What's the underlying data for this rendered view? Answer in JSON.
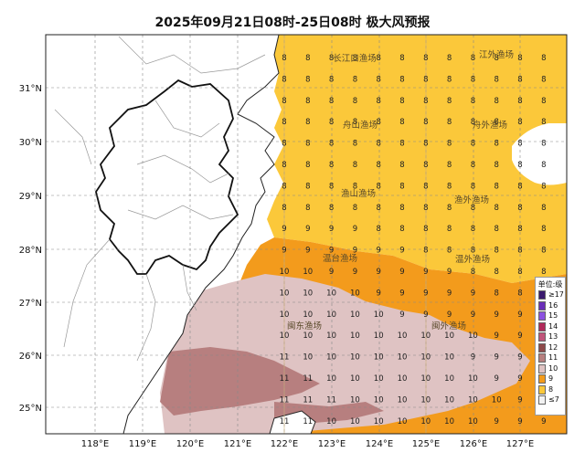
{
  "title": "2025年09月21日08时-25日08时 极大风预报",
  "axes": {
    "lon_labels": [
      "118°E",
      "119°E",
      "120°E",
      "121°E",
      "122°E",
      "123°E",
      "124°E",
      "125°E",
      "126°E",
      "127°E"
    ],
    "lat_labels": [
      "31°N",
      "30°N",
      "29°N",
      "28°N",
      "27°N",
      "26°N",
      "25°N"
    ]
  },
  "fishing_grounds": [
    "长江口渔场",
    "江外渔场",
    "舟山渔场",
    "舟外渔场",
    "渔山渔场",
    "渔外渔场",
    "温台渔场",
    "温外渔场",
    "闽东渔场",
    "闽外渔场"
  ],
  "wind_grid": {
    "rows": [
      [
        8,
        8,
        8,
        8,
        8,
        8,
        8,
        8,
        8,
        8,
        8,
        8
      ],
      [
        8,
        8,
        8,
        8,
        8,
        8,
        8,
        8,
        8,
        8,
        8,
        8
      ],
      [
        8,
        8,
        8,
        8,
        8,
        8,
        8,
        8,
        8,
        8,
        8,
        8
      ],
      [
        8,
        8,
        8,
        8,
        8,
        8,
        8,
        8,
        8,
        8,
        8,
        8
      ],
      [
        8,
        8,
        8,
        8,
        8,
        8,
        8,
        8,
        8,
        8,
        8,
        8
      ],
      [
        8,
        8,
        8,
        8,
        8,
        8,
        8,
        8,
        8,
        8,
        8,
        8
      ],
      [
        8,
        8,
        8,
        8,
        8,
        8,
        8,
        8,
        8,
        8,
        8,
        8
      ],
      [
        8,
        8,
        8,
        8,
        8,
        8,
        8,
        8,
        8,
        8,
        8,
        8
      ],
      [
        9,
        9,
        9,
        9,
        8,
        8,
        8,
        8,
        8,
        8,
        8,
        8
      ],
      [
        9,
        9,
        9,
        9,
        9,
        9,
        8,
        8,
        8,
        8,
        8,
        8
      ],
      [
        10,
        10,
        9,
        9,
        9,
        9,
        9,
        9,
        8,
        8,
        8,
        8
      ],
      [
        10,
        10,
        10,
        10,
        9,
        9,
        9,
        9,
        9,
        8,
        8,
        8
      ],
      [
        10,
        10,
        10,
        10,
        10,
        9,
        9,
        9,
        9,
        9,
        9,
        8
      ],
      [
        10,
        10,
        10,
        10,
        10,
        10,
        10,
        10,
        10,
        9,
        9,
        9
      ],
      [
        11,
        10,
        10,
        10,
        10,
        10,
        10,
        10,
        9,
        9,
        9,
        9
      ],
      [
        11,
        11,
        10,
        10,
        10,
        10,
        10,
        10,
        10,
        9,
        9,
        9
      ],
      [
        11,
        11,
        11,
        10,
        10,
        10,
        10,
        10,
        10,
        10,
        9,
        9
      ],
      [
        11,
        11,
        10,
        10,
        10,
        10,
        10,
        10,
        10,
        9,
        9,
        9
      ]
    ]
  },
  "legend": {
    "title": "单位:级",
    "items": [
      {
        "label": "≥17",
        "color": "#3a1a6e"
      },
      {
        "label": "16",
        "color": "#6a2eb8"
      },
      {
        "label": "15",
        "color": "#8c52e0"
      },
      {
        "label": "14",
        "color": "#b02a5a"
      },
      {
        "label": "13",
        "color": "#c0557a"
      },
      {
        "label": "12",
        "color": "#8e4a4a"
      },
      {
        "label": "11",
        "color": "#b77f7f"
      },
      {
        "label": "10",
        "color": "#dfc3c3"
      },
      {
        "label": "9",
        "color": "#f39b1c"
      },
      {
        "label": "8",
        "color": "#fbc83a"
      },
      {
        "label": "≤7",
        "color": "#f2f2f2"
      }
    ]
  }
}
